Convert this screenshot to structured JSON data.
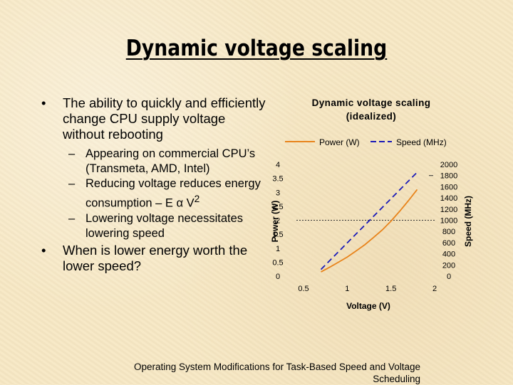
{
  "slide": {
    "title": "Dynamic voltage scaling",
    "bullets": [
      {
        "marker": "•",
        "text": "The ability to quickly and efficiently change CPU supply voltage without rebooting"
      },
      {
        "marker": "•",
        "text": "When is lower energy worth the lower speed?"
      }
    ],
    "subbullets": [
      {
        "marker": "–",
        "text": "Appearing on commercial CPU’s (Transmeta, AMD, Intel)"
      },
      {
        "marker": "–",
        "text": "Reducing voltage reduces energy consumption – E α V",
        "superscript": "2"
      },
      {
        "marker": "–",
        "text": "Lowering voltage necessitates lowering speed"
      }
    ],
    "footer_line1": "Operating System Modifications for Task-Based Speed and Voltage",
    "footer_line2": "Scheduling"
  },
  "chart_data": {
    "type": "line",
    "title_line1": "Dynamic voltage scaling",
    "title_line2": "(idealized)",
    "xlabel": "Voltage (V)",
    "ylabel_left": "Power (W)",
    "ylabel_right": "Speed (MHz)",
    "xlim": [
      0.5,
      2
    ],
    "ylim_left": [
      0,
      4
    ],
    "ylim_right": [
      0,
      2000
    ],
    "x_ticks": [
      "0.5",
      "1",
      "1.5",
      "2"
    ],
    "y_ticks_left": [
      "0",
      "0.5",
      "1",
      "1.5",
      "2",
      "2.5",
      "3",
      "3.5",
      "4"
    ],
    "y_ticks_right": [
      "0",
      "200",
      "400",
      "600",
      "800",
      "1000",
      "1200",
      "1400",
      "1600",
      "1800",
      "2000"
    ],
    "reference_line": {
      "axis": "left",
      "y": 2,
      "style": "dotted"
    },
    "series": [
      {
        "name": "Power (W)",
        "axis": "left",
        "color": "#e8841c",
        "dash": "solid",
        "x": [
          0.7,
          0.8,
          0.9,
          1.0,
          1.1,
          1.2,
          1.3,
          1.4,
          1.5,
          1.6,
          1.7,
          1.8
        ],
        "y": [
          0.15,
          0.32,
          0.5,
          0.68,
          0.9,
          1.12,
          1.38,
          1.65,
          1.97,
          2.32,
          2.7,
          3.1
        ]
      },
      {
        "name": "Speed (MHz)",
        "axis": "right",
        "color": "#1a1ab8",
        "dash": "dashed",
        "x": [
          0.7,
          1.8
        ],
        "y": [
          120,
          1860
        ]
      }
    ]
  }
}
